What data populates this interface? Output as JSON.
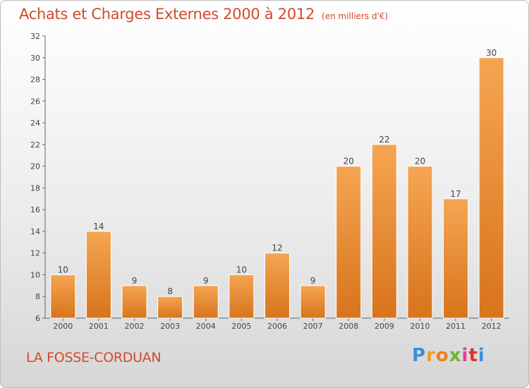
{
  "chart_data": {
    "type": "bar",
    "title": "Achats et Charges Externes 2000 à 2012",
    "subtitle": "(en milliers d'€)",
    "categories": [
      "2000",
      "2001",
      "2002",
      "2003",
      "2004",
      "2005",
      "2006",
      "2007",
      "2008",
      "2009",
      "2010",
      "2011",
      "2012"
    ],
    "values": [
      10,
      14,
      9,
      8,
      9,
      10,
      12,
      9,
      20,
      22,
      20,
      17,
      30
    ],
    "data_labels": [
      "10",
      "14",
      "9",
      "8",
      "9",
      "10",
      "12",
      "9",
      "20",
      "22",
      "20",
      "17",
      "30"
    ],
    "ylim": [
      6,
      32
    ],
    "yticks": [
      6,
      8,
      10,
      12,
      14,
      16,
      18,
      20,
      22,
      24,
      26,
      28,
      30,
      32
    ],
    "grid": false,
    "bar_color_top": "#f5a552",
    "bar_color_bottom": "#d8741c"
  },
  "footer": {
    "commune": "LA FOSSE-CORDUAN",
    "brand_letters": [
      "P",
      "r",
      "o",
      "x",
      "i",
      "t",
      "i"
    ],
    "brand_colors": [
      "#3c8fd8",
      "#f0a020",
      "#f08020",
      "#6cb82c",
      "#e04090",
      "#e03030",
      "#3c8fd8"
    ]
  }
}
